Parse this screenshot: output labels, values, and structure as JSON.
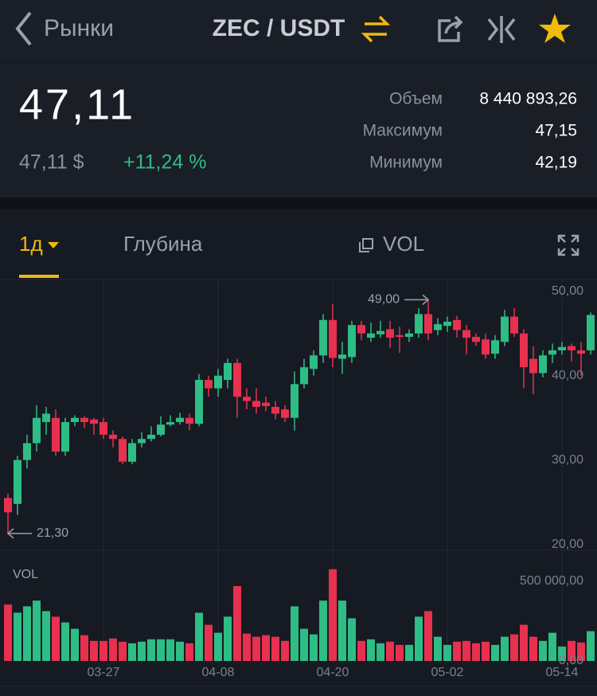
{
  "header": {
    "back": "Рынки",
    "pair": "ZEC / USDT"
  },
  "ticker": {
    "price": "47,11",
    "price_usd": "47,11 $",
    "change": "+11,24 %",
    "stats": [
      {
        "label": "Объем",
        "value": "8 440 893,26"
      },
      {
        "label": "Максимум",
        "value": "47,15"
      },
      {
        "label": "Минимум",
        "value": "42,19"
      }
    ]
  },
  "tabs": [
    "1д",
    "Глубина",
    "VOL"
  ],
  "chart_data": {
    "type": "candlestick",
    "up_color": "#2ebd85",
    "down_color": "#e8304f",
    "categories": [
      null,
      null,
      null,
      null,
      null,
      null,
      null,
      null,
      null,
      null,
      "03-27",
      null,
      null,
      null,
      null,
      null,
      null,
      null,
      null,
      null,
      null,
      null,
      "04-08",
      null,
      null,
      null,
      null,
      null,
      null,
      null,
      null,
      null,
      null,
      null,
      "04-20",
      null,
      null,
      null,
      null,
      null,
      null,
      null,
      null,
      null,
      null,
      null,
      "05-02",
      null,
      null,
      null,
      null,
      null,
      null,
      null,
      null,
      null,
      null,
      null,
      "05-14",
      null,
      null,
      null
    ],
    "open": [
      25.5,
      24.8,
      30,
      32,
      34.5,
      35,
      31,
      34.5,
      35,
      34.8,
      34.5,
      33,
      32.5,
      29.8,
      32,
      32.5,
      33,
      34.2,
      34.5,
      35,
      34.3,
      39.5,
      38.5,
      39.5,
      41.5,
      37.5,
      37,
      36.8,
      36.3,
      36,
      35,
      39,
      40.8,
      42.4,
      46.6,
      42,
      42.2,
      46,
      44.5,
      44.9,
      45.5,
      44.8,
      44.6,
      45,
      47.3,
      45.4,
      45.9,
      46.6,
      45.4,
      44.6,
      44.3,
      42.6,
      44,
      47,
      45,
      42,
      40.3,
      42.5,
      43,
      43.5,
      43,
      43
    ],
    "high": [
      26,
      30.5,
      33,
      36.5,
      36.3,
      36,
      35,
      35.3,
      35.2,
      35,
      35,
      33.5,
      32.8,
      32.5,
      33.3,
      34,
      35.2,
      35.3,
      35.6,
      35.5,
      40.2,
      40,
      40.8,
      42,
      42,
      38.5,
      38.5,
      37.5,
      37,
      36.5,
      40.5,
      42,
      43,
      47.3,
      48.5,
      44,
      46.5,
      46.5,
      46.3,
      46.5,
      46.5,
      45.8,
      45.5,
      48,
      49,
      46.8,
      47,
      47.1,
      46,
      45,
      45,
      44.8,
      47.8,
      48,
      45.5,
      43.5,
      43,
      43.8,
      44,
      43.8,
      44,
      47.5
    ],
    "low": [
      21.3,
      23.5,
      29,
      31,
      33,
      30.5,
      30.5,
      34,
      33.8,
      33,
      32.5,
      31.5,
      29.5,
      29.5,
      31.5,
      32.2,
      32.8,
      34,
      34.2,
      33.5,
      34,
      37.5,
      37.5,
      38.5,
      35,
      36,
      35.5,
      35.8,
      34.8,
      34.5,
      33.5,
      38.5,
      40,
      41.5,
      41,
      40.2,
      41.5,
      44.2,
      44,
      44.5,
      43.3,
      42.7,
      44,
      44.5,
      44.2,
      44.8,
      45.2,
      44.5,
      42.5,
      43.5,
      42,
      42,
      43.5,
      44.6,
      38.5,
      37.8,
      39.8,
      41.5,
      42.5,
      41.7,
      40,
      42.5
    ],
    "close": [
      23.8,
      30,
      32,
      35,
      35.5,
      31,
      34.5,
      35,
      34.5,
      34.3,
      33,
      32.5,
      29.8,
      32,
      32.5,
      33,
      34.2,
      34.5,
      35,
      34.3,
      39.5,
      38.5,
      40,
      41.5,
      37.5,
      37,
      36.3,
      36.4,
      35.5,
      35,
      39,
      41,
      42.4,
      46.6,
      42.1,
      42.5,
      46,
      45,
      45,
      45.3,
      44.5,
      44.6,
      45,
      47.3,
      45,
      46.1,
      46.4,
      45.4,
      44.5,
      44,
      42.5,
      44.2,
      47,
      45,
      41,
      40.3,
      42.4,
      43,
      43.4,
      43,
      42.6,
      47.2
    ],
    "volume": [
      354000,
      303000,
      343000,
      379000,
      313000,
      278000,
      242000,
      202000,
      162000,
      126000,
      126000,
      141000,
      121000,
      111000,
      121000,
      136000,
      136000,
      136000,
      121000,
      111000,
      303000,
      227000,
      177000,
      278000,
      470000,
      172000,
      152000,
      162000,
      152000,
      126000,
      343000,
      202000,
      167000,
      379000,
      576000,
      379000,
      268000,
      126000,
      136000,
      111000,
      121000,
      101000,
      101000,
      278000,
      313000,
      152000,
      101000,
      121000,
      126000,
      111000,
      121000,
      101000,
      152000,
      167000,
      227000,
      152000,
      126000,
      177000,
      91000,
      126000,
      116000,
      187000
    ],
    "ylim": [
      19.4,
      51.3
    ],
    "yticks": [
      {
        "value": 20,
        "label": "20,00"
      },
      {
        "value": 30,
        "label": "30,00"
      },
      {
        "value": 40,
        "label": "40,00"
      },
      {
        "value": 50,
        "label": "50,00"
      }
    ],
    "annotations": [
      {
        "value": 49,
        "label": "49,00"
      },
      {
        "value": 21.3,
        "label": "21,30"
      }
    ],
    "volume_label": "VOL",
    "volume_ylim": [
      0,
      650000
    ],
    "volume_yticks": [
      {
        "value": 0,
        "label": "0,00"
      },
      {
        "value": 500000,
        "label": "500 000,00"
      }
    ]
  }
}
